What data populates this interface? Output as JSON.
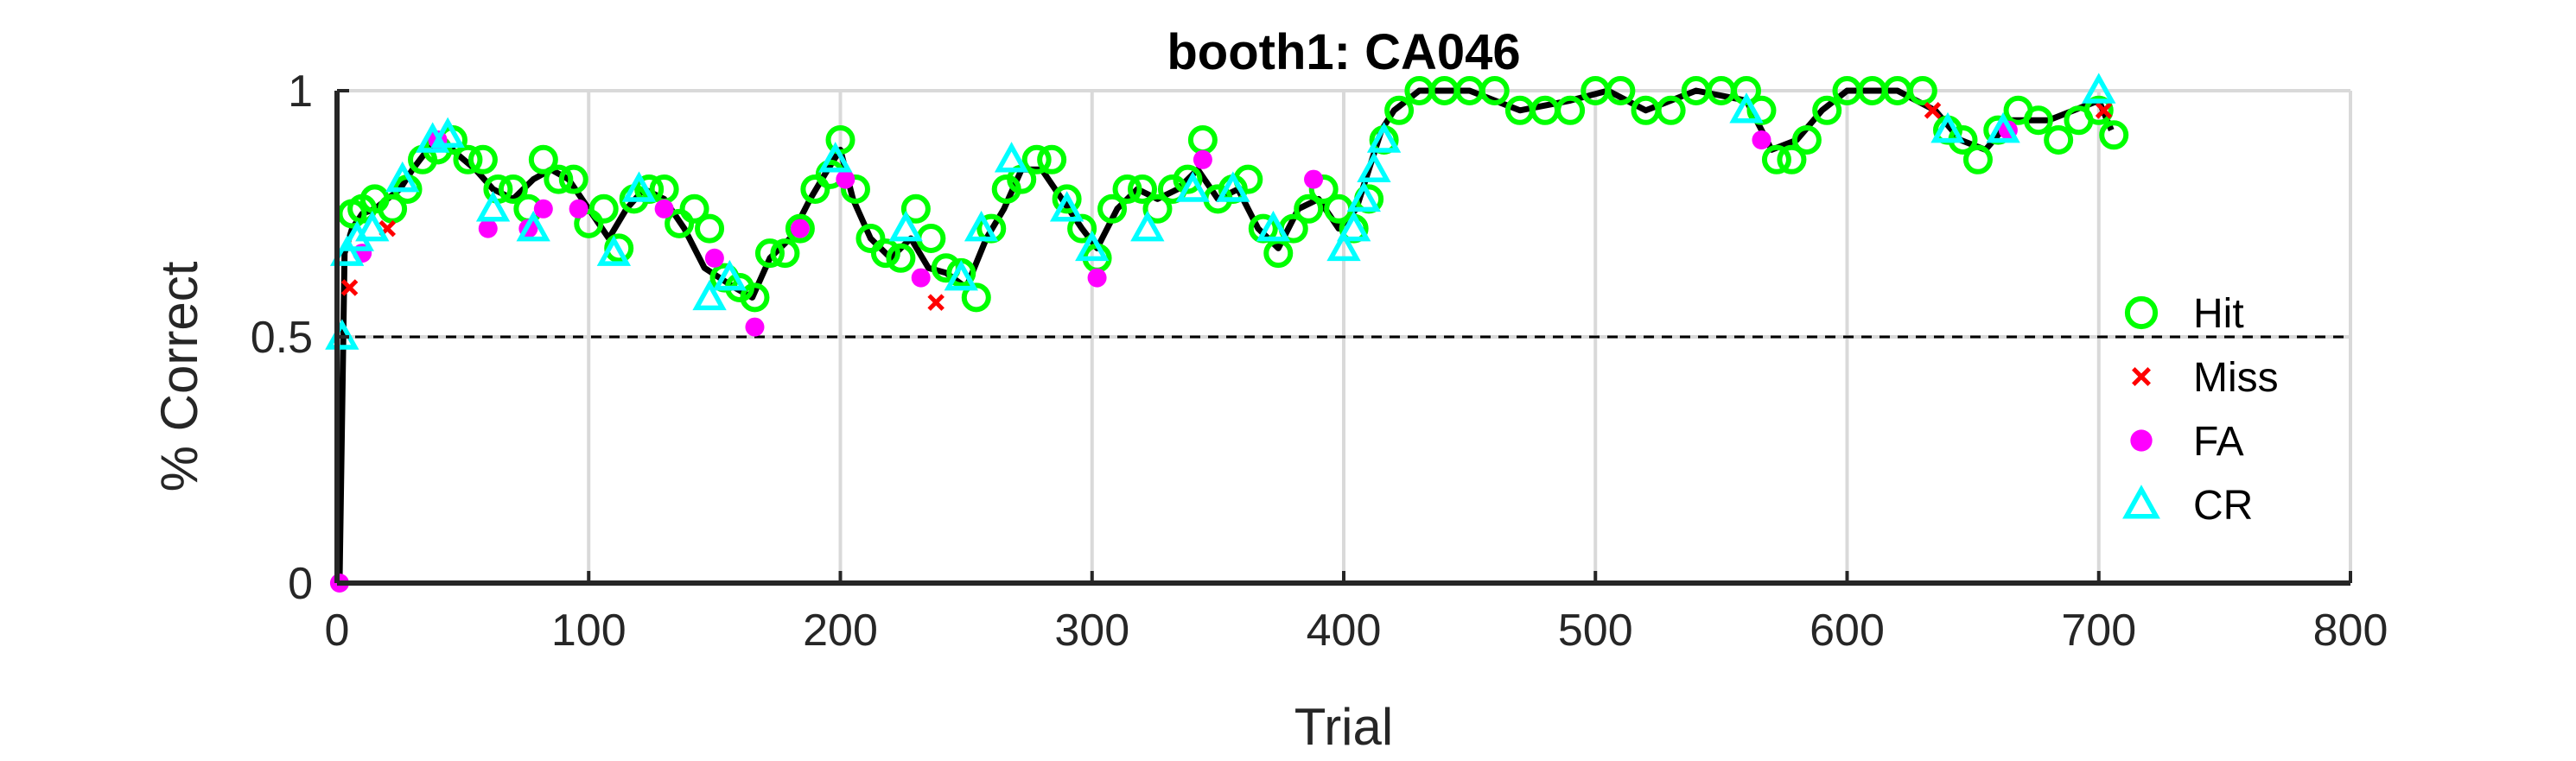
{
  "chart_data": {
    "type": "scatter",
    "title": "booth1: CA046",
    "xlabel": "Trial",
    "ylabel": "% Correct",
    "xlim": [
      0,
      800
    ],
    "ylim": [
      0,
      1
    ],
    "xticks": [
      "0",
      "100",
      "200",
      "300",
      "400",
      "500",
      "600",
      "700",
      "800"
    ],
    "yticks": [
      "0",
      "0.5",
      "1"
    ],
    "grid": true,
    "legend_position": "right",
    "reference_line": {
      "y": 0.5,
      "style": "dashed"
    },
    "colors": {
      "hit": "#00ff00",
      "miss": "#ff0000",
      "fa": "#ff00ff",
      "cr": "#00ffff",
      "line": "#000000",
      "grid": "#d9d9d9",
      "axis": "#262626"
    },
    "performance_line": {
      "x": [
        1,
        3,
        6,
        10,
        15,
        20,
        25,
        30,
        36,
        42,
        48,
        55,
        62,
        70,
        78,
        85,
        92,
        100,
        108,
        115,
        122,
        130,
        138,
        146,
        152,
        158,
        165,
        172,
        180,
        188,
        195,
        200,
        205,
        212,
        220,
        228,
        235,
        242,
        250,
        258,
        265,
        272,
        280,
        288,
        296,
        302,
        310,
        318,
        326,
        334,
        342,
        350,
        358,
        366,
        374,
        382,
        390,
        398,
        405,
        410,
        415,
        420,
        430,
        450,
        470,
        490,
        505,
        520,
        540,
        560,
        570,
        580,
        590,
        600,
        620,
        635,
        645,
        655,
        665,
        680,
        700,
        705
      ],
      "y": [
        0,
        0.67,
        0.72,
        0.75,
        0.76,
        0.78,
        0.8,
        0.84,
        0.88,
        0.9,
        0.87,
        0.84,
        0.8,
        0.78,
        0.82,
        0.84,
        0.82,
        0.76,
        0.7,
        0.76,
        0.8,
        0.78,
        0.72,
        0.64,
        0.62,
        0.6,
        0.58,
        0.66,
        0.7,
        0.78,
        0.84,
        0.88,
        0.78,
        0.7,
        0.66,
        0.7,
        0.64,
        0.63,
        0.6,
        0.7,
        0.76,
        0.84,
        0.84,
        0.78,
        0.72,
        0.68,
        0.76,
        0.8,
        0.78,
        0.8,
        0.84,
        0.78,
        0.8,
        0.72,
        0.68,
        0.76,
        0.78,
        0.72,
        0.76,
        0.84,
        0.92,
        0.96,
        1.0,
        1.0,
        0.96,
        0.98,
        1.0,
        0.96,
        1.0,
        0.98,
        0.88,
        0.9,
        0.96,
        1.0,
        1.0,
        0.96,
        0.9,
        0.88,
        0.94,
        0.94,
        0.98,
        0.92
      ]
    },
    "series": [
      {
        "name": "Hit",
        "marker": "circle-open",
        "x": [
          6,
          10,
          15,
          22,
          28,
          34,
          40,
          46,
          52,
          58,
          64,
          70,
          76,
          82,
          88,
          94,
          100,
          106,
          112,
          118,
          124,
          130,
          136,
          142,
          148,
          154,
          160,
          166,
          172,
          178,
          184,
          190,
          196,
          200,
          206,
          212,
          218,
          224,
          230,
          236,
          242,
          248,
          254,
          260,
          266,
          272,
          278,
          284,
          290,
          296,
          302,
          308,
          314,
          320,
          326,
          332,
          338,
          344,
          350,
          356,
          362,
          368,
          374,
          380,
          386,
          392,
          398,
          404,
          410,
          416,
          422,
          430,
          440,
          450,
          460,
          470,
          480,
          490,
          500,
          510,
          520,
          530,
          540,
          550,
          560,
          566,
          572,
          578,
          584,
          592,
          600,
          610,
          620,
          630,
          640,
          646,
          652,
          660,
          668,
          676,
          684,
          692,
          700,
          706
        ],
        "y": [
          0.75,
          0.76,
          0.78,
          0.76,
          0.8,
          0.86,
          0.88,
          0.9,
          0.86,
          0.86,
          0.8,
          0.8,
          0.76,
          0.86,
          0.82,
          0.82,
          0.73,
          0.76,
          0.68,
          0.78,
          0.8,
          0.8,
          0.73,
          0.76,
          0.72,
          0.62,
          0.6,
          0.58,
          0.67,
          0.67,
          0.72,
          0.8,
          0.83,
          0.9,
          0.8,
          0.7,
          0.67,
          0.66,
          0.76,
          0.7,
          0.64,
          0.63,
          0.58,
          0.72,
          0.8,
          0.82,
          0.86,
          0.86,
          0.78,
          0.72,
          0.66,
          0.76,
          0.8,
          0.8,
          0.76,
          0.8,
          0.82,
          0.9,
          0.78,
          0.8,
          0.82,
          0.72,
          0.67,
          0.72,
          0.76,
          0.8,
          0.76,
          0.72,
          0.78,
          0.9,
          0.96,
          1.0,
          1.0,
          1.0,
          1.0,
          0.96,
          0.96,
          0.96,
          1.0,
          1.0,
          0.96,
          0.96,
          1.0,
          1.0,
          1.0,
          0.96,
          0.86,
          0.86,
          0.9,
          0.96,
          1.0,
          1.0,
          1.0,
          1.0,
          0.92,
          0.9,
          0.86,
          0.92,
          0.96,
          0.94,
          0.9,
          0.94,
          0.96,
          0.91
        ]
      },
      {
        "name": "Miss",
        "marker": "x",
        "x": [
          5,
          20,
          238,
          634,
          702
        ],
        "y": [
          0.6,
          0.72,
          0.57,
          0.96,
          0.96
        ]
      },
      {
        "name": "FA",
        "marker": "dot",
        "x": [
          1,
          10,
          40,
          60,
          76,
          82,
          96,
          130,
          150,
          166,
          184,
          202,
          232,
          302,
          344,
          388,
          566,
          664
        ],
        "y": [
          0,
          0.67,
          0.9,
          0.72,
          0.72,
          0.76,
          0.76,
          0.76,
          0.66,
          0.52,
          0.72,
          0.82,
          0.62,
          0.62,
          0.86,
          0.82,
          0.9,
          0.92
        ]
      },
      {
        "name": "CR",
        "marker": "triangle-open",
        "x": [
          2,
          4,
          8,
          14,
          26,
          38,
          44,
          62,
          78,
          110,
          120,
          148,
          156,
          198,
          226,
          248,
          256,
          268,
          290,
          300,
          322,
          340,
          356,
          372,
          400,
          404,
          408,
          412,
          416,
          560,
          640,
          662,
          700
        ],
        "y": [
          0.5,
          0.67,
          0.7,
          0.72,
          0.82,
          0.9,
          0.91,
          0.76,
          0.72,
          0.67,
          0.8,
          0.58,
          0.62,
          0.86,
          0.72,
          0.62,
          0.72,
          0.86,
          0.76,
          0.68,
          0.72,
          0.8,
          0.8,
          0.72,
          0.68,
          0.72,
          0.78,
          0.84,
          0.9,
          0.96,
          0.92,
          0.92,
          1.0
        ]
      }
    ]
  }
}
